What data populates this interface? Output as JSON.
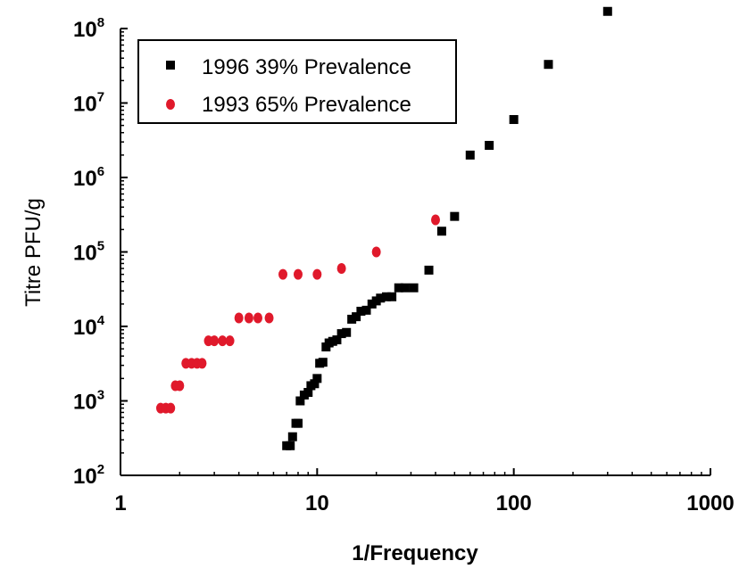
{
  "chart_data": {
    "type": "scatter",
    "xlabel": "1/Frequency",
    "ylabel": "Titre PFU/g",
    "xscale": "log",
    "yscale": "log",
    "xlim": [
      1,
      1000
    ],
    "ylim": [
      100,
      100000000
    ],
    "x_ticks": [
      {
        "value": 1,
        "label": "1"
      },
      {
        "value": 10,
        "label": "10"
      },
      {
        "value": 100,
        "label": "100"
      },
      {
        "value": 1000,
        "label": "1000"
      }
    ],
    "y_ticks": [
      {
        "value": 100,
        "base": "10",
        "exp": "2"
      },
      {
        "value": 1000,
        "base": "10",
        "exp": "3"
      },
      {
        "value": 10000,
        "base": "10",
        "exp": "4"
      },
      {
        "value": 100000,
        "base": "10",
        "exp": "5"
      },
      {
        "value": 1000000,
        "base": "10",
        "exp": "6"
      },
      {
        "value": 10000000,
        "base": "10",
        "exp": "7"
      },
      {
        "value": 100000000,
        "base": "10",
        "exp": "8"
      }
    ],
    "legend_position": "top-left",
    "grid": false,
    "series": [
      {
        "name": "1996 39% Prevalence",
        "marker": "square",
        "color": "#000000",
        "points": [
          [
            7.0,
            250
          ],
          [
            7.3,
            250
          ],
          [
            7.5,
            330
          ],
          [
            7.8,
            500
          ],
          [
            8.0,
            500
          ],
          [
            8.2,
            1000
          ],
          [
            8.6,
            1200
          ],
          [
            9.0,
            1300
          ],
          [
            9.3,
            1600
          ],
          [
            9.7,
            1700
          ],
          [
            10.0,
            2000
          ],
          [
            10.3,
            3200
          ],
          [
            10.7,
            3300
          ],
          [
            11.1,
            5300
          ],
          [
            11.5,
            6000
          ],
          [
            12.0,
            6300
          ],
          [
            12.6,
            6600
          ],
          [
            13.3,
            8000
          ],
          [
            14.1,
            8300
          ],
          [
            15.0,
            12500
          ],
          [
            15.8,
            13500
          ],
          [
            16.7,
            16000
          ],
          [
            17.8,
            16500
          ],
          [
            19.0,
            20000
          ],
          [
            20.0,
            22000
          ],
          [
            21.0,
            24000
          ],
          [
            22.5,
            25000
          ],
          [
            24.0,
            25000
          ],
          [
            26.0,
            33000
          ],
          [
            28.0,
            33000
          ],
          [
            31.0,
            33000
          ],
          [
            37.0,
            57000
          ],
          [
            43.0,
            190000
          ],
          [
            50.0,
            300000
          ],
          [
            60.0,
            2000000
          ],
          [
            75.0,
            2700000
          ],
          [
            100.0,
            6000000
          ],
          [
            150.0,
            33000000
          ],
          [
            300.0,
            170000000
          ]
        ]
      },
      {
        "name": "1993 65% Prevalence",
        "marker": "circle",
        "color": "#e0192b",
        "points": [
          [
            1.6,
            800
          ],
          [
            1.7,
            800
          ],
          [
            1.8,
            800
          ],
          [
            1.9,
            1600
          ],
          [
            2.0,
            1600
          ],
          [
            2.15,
            3200
          ],
          [
            2.3,
            3200
          ],
          [
            2.45,
            3200
          ],
          [
            2.6,
            3200
          ],
          [
            2.8,
            6400
          ],
          [
            3.0,
            6400
          ],
          [
            3.3,
            6400
          ],
          [
            3.6,
            6400
          ],
          [
            4.0,
            13000
          ],
          [
            4.5,
            13000
          ],
          [
            5.0,
            13000
          ],
          [
            5.7,
            13000
          ],
          [
            6.7,
            50000
          ],
          [
            8.0,
            50000
          ],
          [
            10.0,
            50000
          ],
          [
            13.3,
            60000
          ],
          [
            20.0,
            100000
          ],
          [
            40.0,
            270000
          ]
        ]
      }
    ]
  }
}
